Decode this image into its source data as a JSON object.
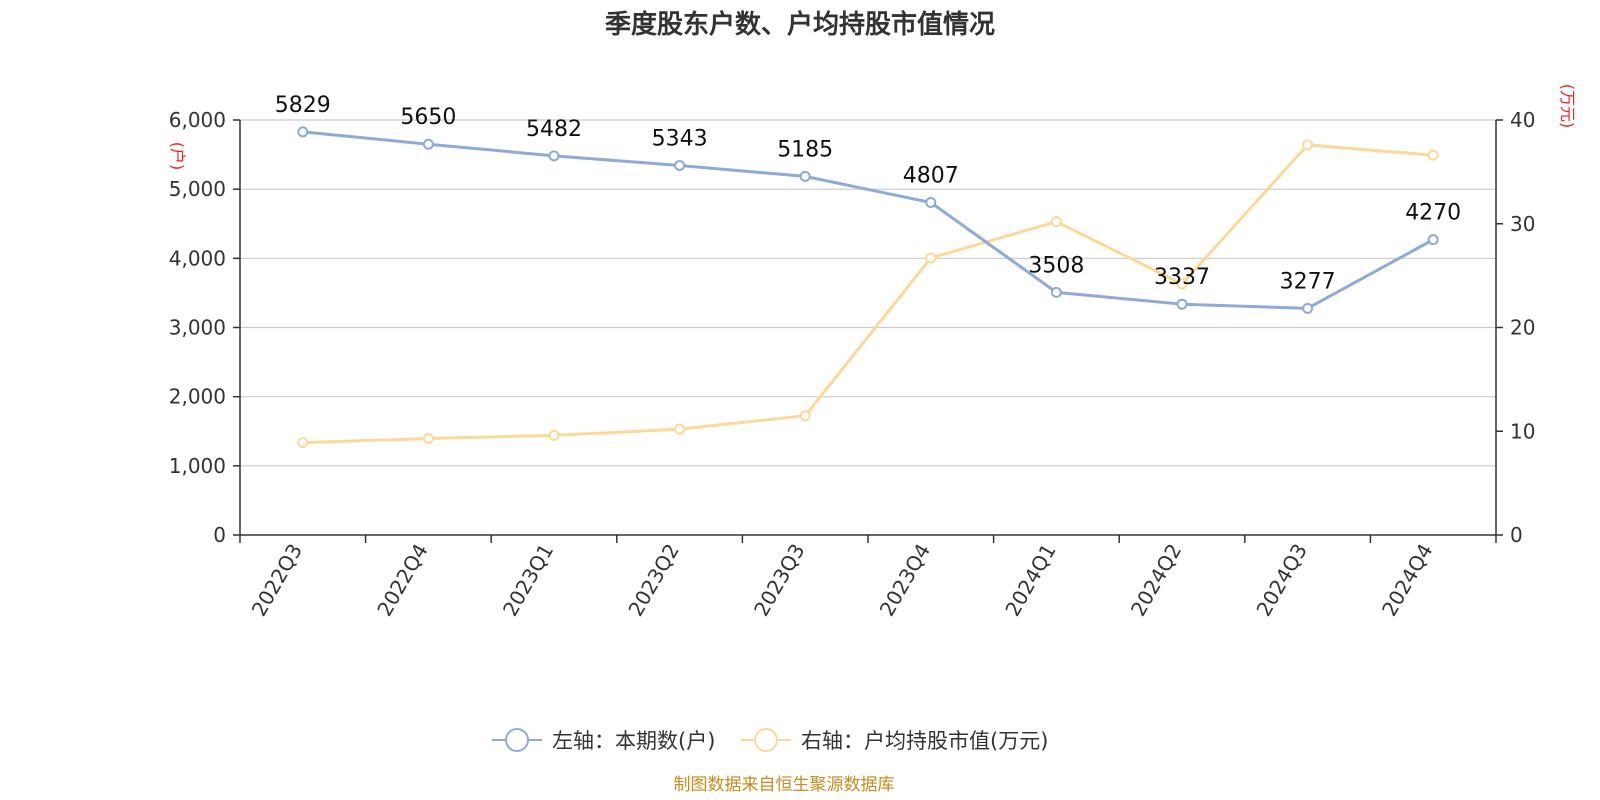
{
  "chart_data": {
    "type": "line",
    "title": "季度股东户数、户均持股市值情况",
    "categories": [
      "2022Q3",
      "2022Q4",
      "2023Q1",
      "2023Q2",
      "2023Q3",
      "2023Q4",
      "2024Q1",
      "2024Q2",
      "2024Q3",
      "2024Q4"
    ],
    "left_axis": {
      "unit": "(户)",
      "ylim": [
        0,
        6000
      ],
      "ticks": [
        0,
        1000,
        2000,
        3000,
        4000,
        5000,
        6000
      ],
      "tick_labels": [
        "0",
        "1,000",
        "2,000",
        "3,000",
        "4,000",
        "5,000",
        "6,000"
      ]
    },
    "right_axis": {
      "unit": "(万元)",
      "ylim": [
        0,
        40
      ],
      "ticks": [
        0,
        10,
        20,
        30,
        40
      ],
      "tick_labels": [
        "0",
        "10",
        "20",
        "30",
        "40"
      ]
    },
    "series": [
      {
        "name": "左轴：本期数(户)",
        "axis": "left",
        "color": "#8eaad8",
        "values": [
          5829,
          5650,
          5482,
          5343,
          5185,
          4807,
          3508,
          3337,
          3277,
          4270
        ],
        "data_labels": [
          "5829",
          "5650",
          "5482",
          "5343",
          "5185",
          "4807",
          "3508",
          "3337",
          "3277",
          "4270"
        ]
      },
      {
        "name": "右轴：户均持股市值(万元)",
        "axis": "right",
        "color": "#fcd899",
        "values": [
          8.9,
          9.3,
          9.6,
          10.2,
          11.5,
          26.7,
          30.2,
          24.2,
          37.6,
          36.6
        ]
      }
    ],
    "grid": true,
    "legend_position": "bottom-center",
    "source": "制图数据来自恒生聚源数据库",
    "colors": {
      "grid": "#cccccc",
      "axis": "#333333",
      "unit_label": "#ee2222",
      "source": "#c98b1d"
    }
  }
}
